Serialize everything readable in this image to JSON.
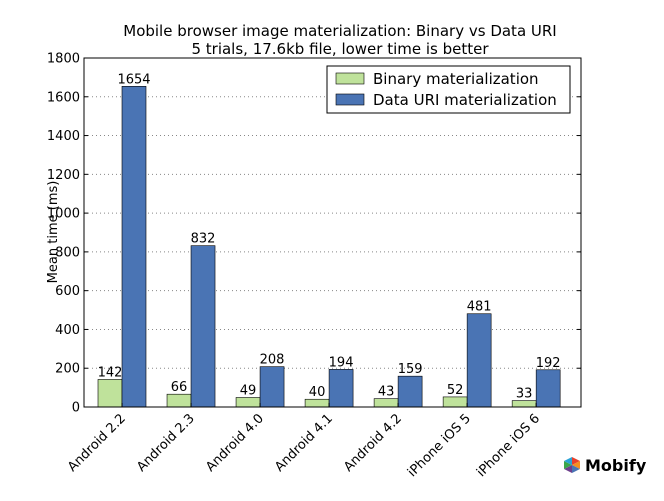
{
  "chart_data": {
    "type": "bar",
    "title": "Mobile browser image materialization: Binary vs Data URI",
    "subtitle": "5 trials, 17.6kb file, lower time is better",
    "xlabel": "",
    "ylabel": "Mean time (ms)",
    "ylim": [
      0,
      1800
    ],
    "yticks": [
      0,
      200,
      400,
      600,
      800,
      1000,
      1200,
      1400,
      1600,
      1800
    ],
    "grid": true,
    "legend_position": "top-right",
    "categories": [
      "Android 2.2",
      "Android 2.3",
      "Android 4.0",
      "Android 4.1",
      "Android 4.2",
      "iPhone iOS 5",
      "iPhone iOS 6"
    ],
    "series": [
      {
        "name": "Binary materialization",
        "color": "#bfe29b",
        "values": [
          142,
          66,
          49,
          40,
          43,
          52,
          33
        ]
      },
      {
        "name": "Data URI materialization",
        "color": "#4a74b4",
        "values": [
          1654,
          832,
          208,
          194,
          159,
          481,
          192
        ]
      }
    ]
  },
  "branding": {
    "logo_text": "Mobify",
    "logo_icon": "mobify-logo-icon"
  }
}
